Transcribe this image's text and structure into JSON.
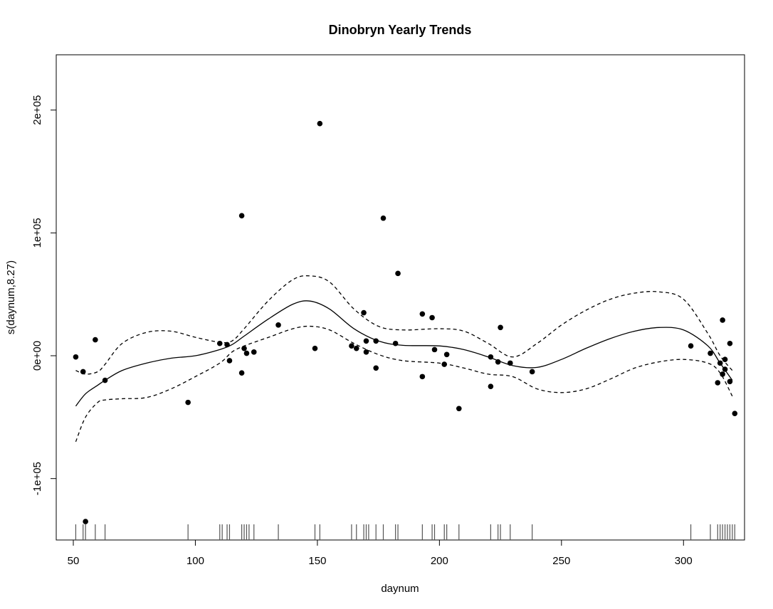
{
  "chart_data": {
    "type": "scatter",
    "title": "Dinobryn Yearly Trends",
    "xlabel": "daynum",
    "ylabel": "s(daynum,8.27)",
    "xlim": [
      43,
      325
    ],
    "ylim": [
      -150000,
      245000
    ],
    "x_ticks": [
      50,
      100,
      150,
      200,
      250,
      300
    ],
    "x_tick_labels": [
      "50",
      "100",
      "150",
      "200",
      "250",
      "300"
    ],
    "y_ticks": [
      -100000,
      0,
      100000,
      200000
    ],
    "y_tick_labels": [
      "-1e+05",
      "0e+00",
      "1e+05",
      "2e+05"
    ],
    "grid": false,
    "legend": "none",
    "colors": {
      "line": "#000000",
      "points": "#000000",
      "rug": "#555555"
    },
    "smooth": {
      "x": [
        51,
        55,
        60,
        63,
        70,
        80,
        90,
        100,
        110,
        115,
        120,
        130,
        140,
        147,
        155,
        165,
        175,
        185,
        200,
        210,
        220,
        230,
        240,
        250,
        260,
        270,
        280,
        290,
        300,
        310,
        315,
        320
      ],
      "y": [
        -41000,
        -31000,
        -24000,
        -20000,
        -12000,
        -6000,
        -2000,
        0,
        5000,
        9000,
        16000,
        30000,
        42000,
        44500,
        38000,
        22000,
        12000,
        8500,
        8000,
        5000,
        -1000,
        -8000,
        -9500,
        -3000,
        6000,
        14000,
        20000,
        23000,
        21000,
        8000,
        -6000,
        -20000
      ]
    },
    "upper_band": {
      "x": [
        51,
        55,
        60,
        63,
        70,
        80,
        90,
        100,
        110,
        115,
        120,
        130,
        140,
        147,
        155,
        165,
        175,
        185,
        200,
        210,
        220,
        230,
        240,
        250,
        260,
        270,
        280,
        290,
        300,
        310,
        315,
        320
      ],
      "y": [
        -12000,
        -15000,
        -13000,
        -7000,
        10000,
        19000,
        20000,
        15000,
        11000,
        12000,
        22000,
        45000,
        62000,
        65000,
        60000,
        38000,
        24000,
        21000,
        22000,
        20000,
        10000,
        -1000,
        10000,
        25000,
        37000,
        46000,
        51000,
        52000,
        46000,
        18000,
        0,
        -12000
      ]
    },
    "lower_band": {
      "x": [
        51,
        55,
        60,
        63,
        70,
        80,
        90,
        100,
        110,
        115,
        120,
        130,
        140,
        147,
        155,
        165,
        175,
        185,
        200,
        210,
        220,
        230,
        240,
        250,
        260,
        270,
        280,
        290,
        300,
        310,
        315,
        320
      ],
      "y": [
        -70000,
        -50000,
        -38000,
        -36000,
        -35000,
        -34000,
        -27000,
        -17000,
        -6000,
        3000,
        8000,
        15000,
        22000,
        24000,
        21000,
        10000,
        1000,
        -4000,
        -6000,
        -10000,
        -15000,
        -17000,
        -27000,
        -30000,
        -27000,
        -19000,
        -10000,
        -5000,
        -3000,
        -6000,
        -14000,
        -33000
      ]
    },
    "points": {
      "x": [
        51,
        54,
        55,
        59,
        63,
        97,
        110,
        113,
        114,
        119,
        119,
        120,
        121,
        124,
        134,
        149,
        151,
        164,
        166,
        169,
        170,
        170,
        174,
        174,
        177,
        182,
        183,
        193,
        193,
        197,
        198,
        202,
        203,
        208,
        221,
        221,
        224,
        225,
        229,
        238,
        303,
        311,
        314,
        315,
        316,
        316,
        317,
        317,
        319,
        319,
        321
      ],
      "y": [
        -1000,
        -13000,
        -135000,
        13000,
        -20000,
        -38000,
        10000,
        9000,
        -4000,
        114000,
        -14000,
        6000,
        2000,
        3000,
        25000,
        6000,
        189000,
        8000,
        6000,
        35000,
        12000,
        3000,
        -10000,
        12000,
        112000,
        10000,
        67000,
        34000,
        -17000,
        31000,
        5000,
        -7000,
        1000,
        -43000,
        -1000,
        -25000,
        -5000,
        23000,
        -6000,
        -13000,
        8000,
        2000,
        -22000,
        -6000,
        29000,
        -15000,
        -3000,
        -11000,
        10000,
        -21000,
        -47000
      ]
    },
    "rug_x": [
      51,
      54,
      55,
      59,
      63,
      97,
      110,
      111,
      113,
      114,
      119,
      120,
      121,
      122,
      124,
      134,
      149,
      151,
      164,
      166,
      169,
      170,
      171,
      174,
      177,
      182,
      183,
      193,
      197,
      198,
      202,
      203,
      208,
      221,
      224,
      225,
      229,
      238,
      303,
      311,
      314,
      315,
      316,
      317,
      318,
      319,
      320,
      321
    ]
  }
}
